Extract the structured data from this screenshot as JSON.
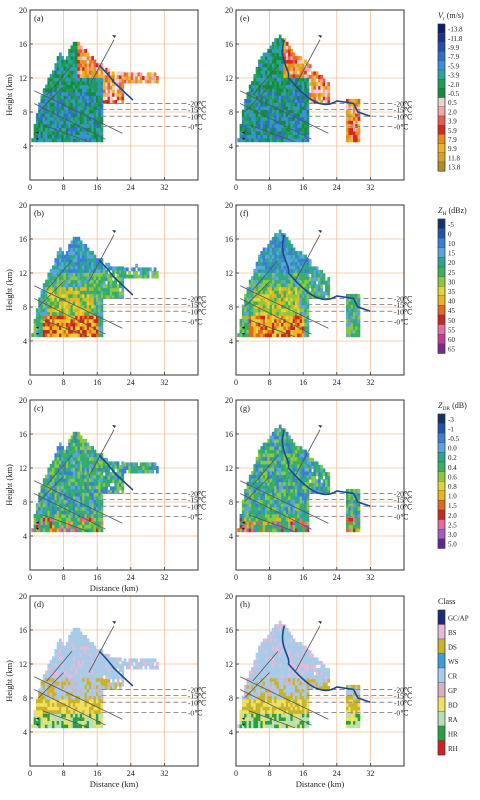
{
  "figure": {
    "panel_ids": [
      "a",
      "e",
      "b",
      "f",
      "c",
      "g",
      "d",
      "h"
    ],
    "ylabel": "Height (km)",
    "xlabel": "Distance (km)",
    "x_ticks": [
      "0",
      "8",
      "16",
      "24",
      "32"
    ],
    "y_ticks": [
      "4",
      "8",
      "12",
      "16",
      "20"
    ],
    "isotherms": [
      "-20℃",
      "-15℃",
      "-10℃",
      "-0℃"
    ],
    "isotherm_heights_km": [
      9.0,
      8.3,
      7.5,
      6.3
    ],
    "x_range_km": [
      0,
      40
    ],
    "y_range_km": [
      0,
      20
    ],
    "grid_color": "#f0c09a"
  },
  "legends": [
    {
      "id": "vr",
      "title_main": "V",
      "title_sub": "r",
      "title_unit": "(m/s)",
      "labels": [
        "-13.8",
        "-11.8",
        "-9.9",
        "-7.9",
        "-5.9",
        "-3.9",
        "-2.0",
        "-0.5",
        "0.5",
        "2.0",
        "3.9",
        "5.9",
        "7.9",
        "9.9",
        "11.8",
        "13.8"
      ],
      "colors": [
        "#0a1e6e",
        "#16348f",
        "#1f4fb2",
        "#2f6fcf",
        "#3c8ee0",
        "#2aa4a0",
        "#1f9d55",
        "#178a40",
        "#f0d0d0",
        "#f4a6a6",
        "#ee5a4a",
        "#d8281e",
        "#e88a1e",
        "#f2b31e",
        "#d9a028",
        "#b38a28"
      ]
    },
    {
      "id": "zh",
      "title_main": "Z",
      "title_sub": "H",
      "title_unit": "(dBz)",
      "labels": [
        "-5",
        "0",
        "10",
        "15",
        "20",
        "25",
        "30",
        "35",
        "40",
        "45",
        "50",
        "55",
        "60",
        "65"
      ],
      "colors": [
        "#14326e",
        "#1f54b5",
        "#3a7fd4",
        "#5aa4e0",
        "#2aa88c",
        "#3cb05a",
        "#8cc83c",
        "#e4d23a",
        "#f2b21e",
        "#e26a1e",
        "#c8281e",
        "#e86aa0",
        "#c43c96",
        "#7a2a8c"
      ]
    },
    {
      "id": "zdr",
      "title_main": "Z",
      "title_sub": "DR",
      "title_unit": "(dB)",
      "labels": [
        "-3",
        "-1",
        "-0.5",
        "0.0",
        "0.2",
        "0.4",
        "0.6",
        "0.8",
        "1.0",
        "1.5",
        "2.0",
        "2.5",
        "3.0",
        "5.0"
      ],
      "colors": [
        "#14326e",
        "#1f54b5",
        "#3a7fd4",
        "#5aa4e0",
        "#2aa88c",
        "#3cb05a",
        "#8cc83c",
        "#e4d23a",
        "#f2b21e",
        "#e26a1e",
        "#c8281e",
        "#e86aa0",
        "#a45ad0",
        "#5a2a8c"
      ]
    },
    {
      "id": "class",
      "title_main": "Class",
      "title_sub": "",
      "title_unit": "",
      "labels": [
        "GC/AP",
        "BS",
        "DS",
        "WS",
        "CR",
        "GP",
        "BD",
        "RA",
        "HR",
        "RH"
      ],
      "colors": [
        "#1a2a7a",
        "#e8b8d8",
        "#c8b42a",
        "#3aa0d8",
        "#a8cce8",
        "#d8b0c8",
        "#f0e060",
        "#b8e0b8",
        "#2aa040",
        "#d02020"
      ]
    }
  ],
  "chart_data": [
    {
      "panel": "a",
      "type": "heatmap",
      "field": "Vr",
      "xlabel": "",
      "ylabel": "Height (km)",
      "xlim": [
        0,
        40
      ],
      "ylim": [
        0,
        20
      ],
      "echo_region_km": {
        "x": [
          0,
          30
        ],
        "top_height_km": 16,
        "base_height_km": 4.5
      },
      "isotherms": {
        "-20": 9.0,
        "-15": 8.3,
        "-10": 7.5,
        "0": 6.3
      }
    },
    {
      "panel": "e",
      "type": "heatmap",
      "field": "Vr",
      "xlabel": "",
      "ylabel": "",
      "xlim": [
        0,
        40
      ],
      "ylim": [
        0,
        20
      ],
      "echo_region_km": {
        "x": [
          0,
          30
        ],
        "top_height_km": 16.8,
        "base_height_km": 4.5
      },
      "isotherms": {
        "-20": 9.0,
        "-15": 8.3,
        "-10": 7.5,
        "0": 6.3
      }
    },
    {
      "panel": "b",
      "type": "heatmap",
      "field": "ZH",
      "xlabel": "",
      "ylabel": "Height (km)",
      "xlim": [
        0,
        40
      ],
      "ylim": [
        0,
        20
      ],
      "echo_region_km": {
        "x": [
          0,
          30
        ],
        "top_height_km": 16,
        "base_height_km": 4.5
      },
      "isotherms": {
        "-20": 9.0,
        "-15": 8.3,
        "-10": 7.5,
        "0": 6.3
      }
    },
    {
      "panel": "f",
      "type": "heatmap",
      "field": "ZH",
      "xlabel": "",
      "ylabel": "",
      "xlim": [
        0,
        40
      ],
      "ylim": [
        0,
        20
      ],
      "echo_region_km": {
        "x": [
          0,
          30
        ],
        "top_height_km": 16.8,
        "base_height_km": 4.5
      },
      "isotherms": {
        "-20": 9.0,
        "-15": 8.3,
        "-10": 7.5,
        "0": 6.3
      }
    },
    {
      "panel": "c",
      "type": "heatmap",
      "field": "ZDR",
      "xlabel": "Distance (km)",
      "ylabel": "Height (km)",
      "xlim": [
        0,
        40
      ],
      "ylim": [
        0,
        20
      ],
      "echo_region_km": {
        "x": [
          0,
          30
        ],
        "top_height_km": 16,
        "base_height_km": 4.5
      },
      "isotherms": {
        "-20": 9.0,
        "-15": 8.3,
        "-10": 7.5,
        "0": 6.3
      }
    },
    {
      "panel": "g",
      "type": "heatmap",
      "field": "ZDR",
      "xlabel": "",
      "ylabel": "",
      "xlim": [
        0,
        40
      ],
      "ylim": [
        0,
        20
      ],
      "echo_region_km": {
        "x": [
          0,
          30
        ],
        "top_height_km": 16.8,
        "base_height_km": 4.5
      },
      "isotherms": {
        "-20": 9.0,
        "-15": 8.3,
        "-10": 7.5,
        "0": 6.3
      }
    },
    {
      "panel": "d",
      "type": "heatmap",
      "field": "Class",
      "xlabel": "Distance (km)",
      "ylabel": "Height (km)",
      "xlim": [
        0,
        40
      ],
      "ylim": [
        0,
        20
      ],
      "echo_region_km": {
        "x": [
          0,
          30
        ],
        "top_height_km": 16,
        "base_height_km": 4.5
      },
      "isotherms": {
        "-20": 9.0,
        "-15": 8.3,
        "-10": 7.5,
        "0": 6.3
      }
    },
    {
      "panel": "h",
      "type": "heatmap",
      "field": "Class",
      "xlabel": "Distance (km)",
      "ylabel": "",
      "xlim": [
        0,
        40
      ],
      "ylim": [
        0,
        20
      ],
      "echo_region_km": {
        "x": [
          0,
          30
        ],
        "top_height_km": 16.8,
        "base_height_km": 4.5
      },
      "isotherms": {
        "-20": 9.0,
        "-15": 8.3,
        "-10": 7.5,
        "0": 6.3
      }
    }
  ]
}
